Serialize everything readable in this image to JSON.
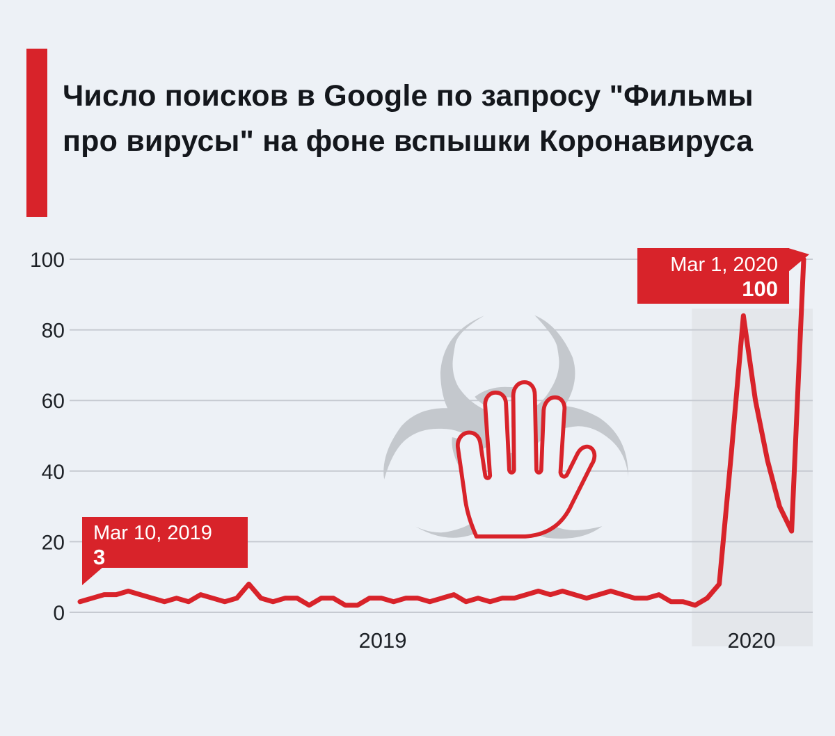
{
  "title": "Число поисков в Google по запросу \"Фильмы про вирусы\" на фоне вспышки Коронавируса",
  "title_lines": [
    "Число поисков в Google по запросу \"Фильмы",
    "про вирусы\" на фоне вспышки Коронавируса"
  ],
  "colors": {
    "background": "#edf1f6",
    "accent_red": "#d8232a",
    "grid": "#c6cad1",
    "text": "#1d2126",
    "watermark_gray": "#c4c8cd",
    "shade": "#e4e7eb",
    "callout_text": "#ffffff"
  },
  "icons": {
    "watermark_biohazard": "biohazard-icon",
    "watermark_hand": "hand-outline-icon",
    "biohazard_glyph": "☣"
  },
  "chart_data": {
    "type": "line",
    "title": "Число поисков в Google по запросу \"Фильмы про вирусы\" на фоне вспышки Коронавируса",
    "x_unit": "week",
    "x_axis_labels": [
      "2019",
      "2020"
    ],
    "y_ticks": [
      0,
      20,
      40,
      60,
      80,
      100
    ],
    "ylim": [
      0,
      100
    ],
    "grid": true,
    "legend": false,
    "line_color": "#d8232a",
    "values": [
      3,
      4,
      5,
      5,
      6,
      5,
      4,
      3,
      4,
      3,
      5,
      4,
      3,
      4,
      8,
      4,
      3,
      4,
      4,
      2,
      4,
      4,
      2,
      2,
      4,
      4,
      3,
      4,
      4,
      3,
      4,
      5,
      3,
      4,
      3,
      4,
      4,
      5,
      6,
      5,
      6,
      5,
      4,
      5,
      6,
      5,
      4,
      4,
      5,
      3,
      3,
      2,
      4,
      8,
      45,
      84,
      60,
      43,
      30,
      23,
      100
    ],
    "shaded_region": {
      "label": "2020",
      "start_index": 52
    },
    "annotations": [
      {
        "date": "Mar 10, 2019",
        "value": 3
      },
      {
        "date": "Mar 1, 2020",
        "value": 100
      }
    ]
  }
}
